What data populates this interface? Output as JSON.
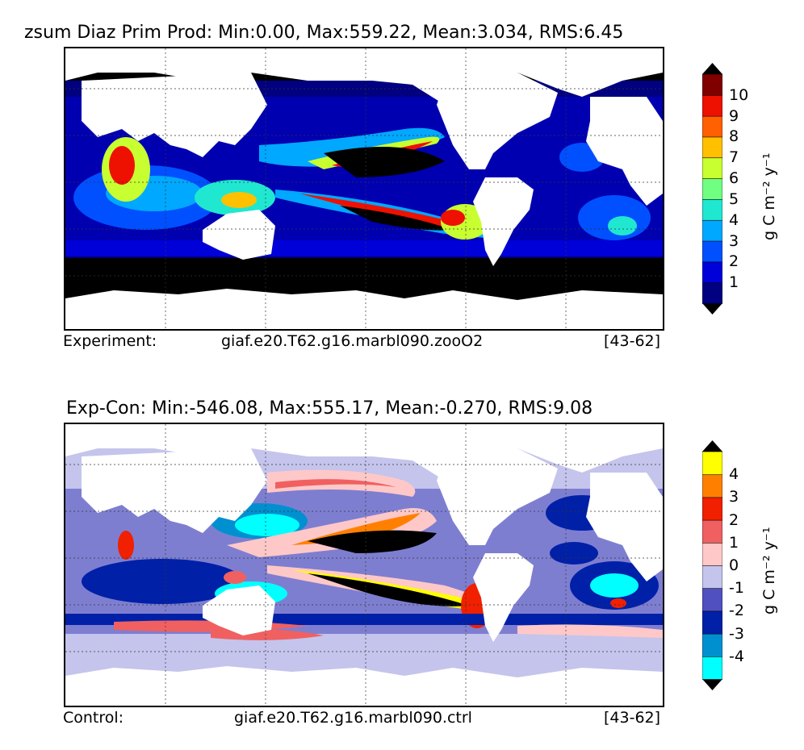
{
  "panels": [
    {
      "title": "zsum Diaz Prim Prod: Min:0.00, Max:559.22, Mean:3.034, RMS:6.45",
      "caption_left": "Experiment:",
      "caption_mid": "giaf.e20.T62.g16.marbl090.zooO2",
      "caption_right": "[43-62]",
      "colorbar": {
        "ticks": [
          "10",
          "9",
          "8",
          "7",
          "6",
          "5",
          "4",
          "3",
          "2",
          "1"
        ],
        "unit": "g C m⁻² y⁻¹",
        "colors": [
          "#000080",
          "#0000d8",
          "#0050ff",
          "#00a8ff",
          "#20e8d0",
          "#70ff80",
          "#c8ff30",
          "#ffc000",
          "#ff6000",
          "#ee1000",
          "#800000"
        ]
      }
    },
    {
      "title": "Exp-Con: Min:-546.08, Max:555.17, Mean:-0.270, RMS:9.08",
      "caption_left": "Control:",
      "caption_mid": "giaf.e20.T62.g16.marbl090.ctrl",
      "caption_right": "[43-62]",
      "colorbar": {
        "ticks": [
          "4",
          "3",
          "2",
          "1",
          "0",
          "-1",
          "-2",
          "-3",
          "-4"
        ],
        "unit": "g C m⁻² y⁻¹",
        "colors": [
          "#00ffff",
          "#0090d0",
          "#0020a8",
          "#5050c0",
          "#c4c4ec",
          "#ffc8c8",
          "#f06060",
          "#f02000",
          "#ff8000",
          "#ffff00"
        ]
      }
    }
  ]
}
